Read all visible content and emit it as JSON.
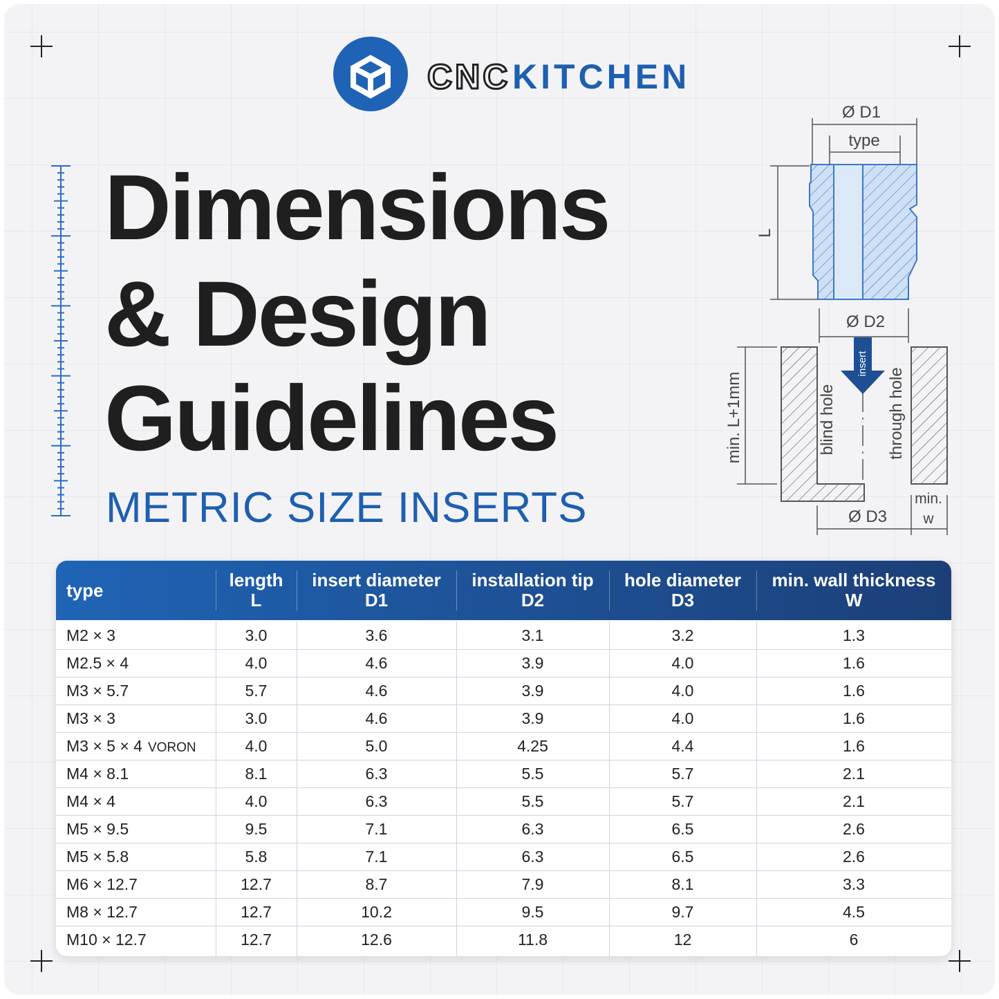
{
  "logo": {
    "brand_part1": "CNC",
    "brand_part2": "KITCHEN"
  },
  "title_lines": [
    "Dimensions",
    "& Design",
    "Guidelines"
  ],
  "subtitle": "METRIC SIZE INSERTS",
  "diagram": {
    "d1": "Ø D1",
    "type": "type",
    "length": "L",
    "d2": "Ø D2",
    "insert": "insert",
    "blind_hole": "blind hole",
    "through_hole": "through hole",
    "min_depth": "min. L+1mm",
    "d3": "Ø D3",
    "min_wall_1": "min.",
    "min_wall_2": "w"
  },
  "table": {
    "header": [
      {
        "label": "type"
      },
      {
        "label": "length",
        "symbol": "L"
      },
      {
        "label": "insert diameter",
        "symbol": "D1"
      },
      {
        "label": "installation tip",
        "symbol": "D2"
      },
      {
        "label": "hole diameter",
        "symbol": "D3"
      },
      {
        "label": "min. wall thickness",
        "symbol": "W"
      }
    ],
    "rows": [
      {
        "type": "M2 × 3",
        "values": [
          "3.0",
          "3.6",
          "3.1",
          "3.2",
          "1.3"
        ]
      },
      {
        "type": "M2.5 × 4",
        "values": [
          "4.0",
          "4.6",
          "3.9",
          "4.0",
          "1.6"
        ]
      },
      {
        "type": "M3 × 5.7",
        "values": [
          "5.7",
          "4.6",
          "3.9",
          "4.0",
          "1.6"
        ]
      },
      {
        "type": "M3 × 3",
        "values": [
          "3.0",
          "4.6",
          "3.9",
          "4.0",
          "1.6"
        ]
      },
      {
        "type": "M3 × 5 × 4",
        "tag": "VORON",
        "values": [
          "4.0",
          "5.0",
          "4.25",
          "4.4",
          "1.6"
        ]
      },
      {
        "type": "M4 × 8.1",
        "values": [
          "8.1",
          "6.3",
          "5.5",
          "5.7",
          "2.1"
        ]
      },
      {
        "type": "M4 × 4",
        "values": [
          "4.0",
          "6.3",
          "5.5",
          "5.7",
          "2.1"
        ]
      },
      {
        "type": "M5 × 9.5",
        "values": [
          "9.5",
          "7.1",
          "6.3",
          "6.5",
          "2.6"
        ]
      },
      {
        "type": "M5 × 5.8",
        "values": [
          "5.8",
          "7.1",
          "6.3",
          "6.5",
          "2.6"
        ]
      },
      {
        "type": "M6 × 12.7",
        "values": [
          "12.7",
          "8.7",
          "7.9",
          "8.1",
          "3.3"
        ]
      },
      {
        "type": "M8 × 12.7",
        "values": [
          "12.7",
          "10.2",
          "9.5",
          "9.7",
          "4.5"
        ]
      },
      {
        "type": "M10 × 12.7",
        "values": [
          "12.7",
          "12.6",
          "11.8",
          "12",
          "6"
        ]
      }
    ]
  }
}
